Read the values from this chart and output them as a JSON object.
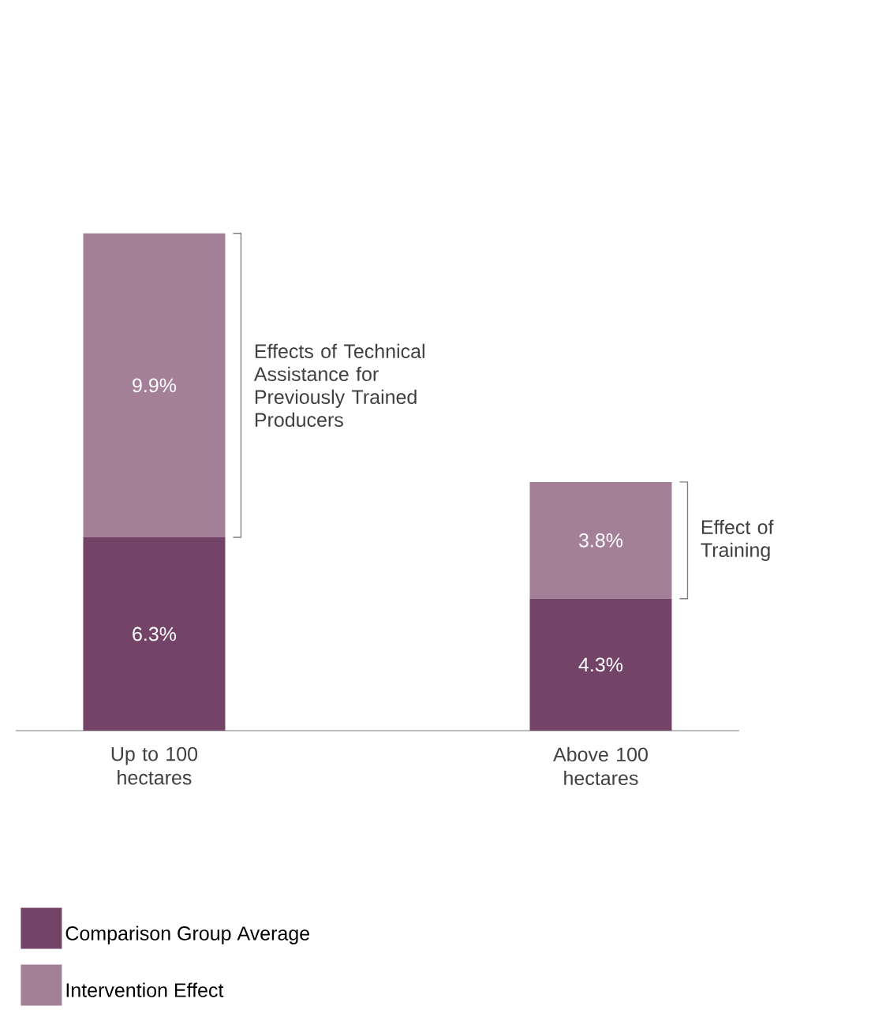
{
  "chart_data": {
    "type": "bar",
    "stacked": true,
    "categories": [
      "Up to 100 hectares",
      "Above 100 hectares"
    ],
    "series": [
      {
        "name": "Comparison Group Average",
        "color": "#734468",
        "values": [
          6.3,
          4.3
        ],
        "value_labels": [
          "6.3%",
          "4.3%"
        ]
      },
      {
        "name": "Intervention Effect",
        "color": "#a38097",
        "values": [
          9.9,
          3.8
        ],
        "value_labels": [
          "9.9%",
          "3.8%"
        ]
      }
    ],
    "annotations": [
      "Effects of Technical Assistance for Previously Trained Producers",
      "Effect of Training"
    ],
    "legend": "bottom"
  }
}
